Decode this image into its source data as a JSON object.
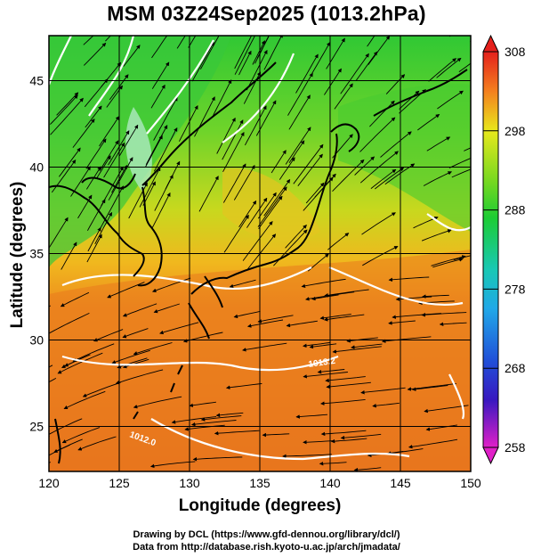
{
  "title": "MSM 03Z24Sep2025 (1013.2hPa)",
  "x_axis_label": "Longitude (degrees)",
  "y_axis_label": "Latitude  (degrees)",
  "footer_line1": "Drawing by DCL (https://www.gfd-dennou.org/library/dcl/)",
  "footer_line2": "Data from http://database.rish.kyoto-u.ac.jp/arch/jmadata/",
  "map": {
    "lon_range": [
      120,
      150
    ],
    "lat_range": [
      22.4,
      47.6
    ],
    "lon_ticks": [
      "120",
      "125",
      "130",
      "135",
      "140",
      "145",
      "150"
    ],
    "lat_ticks": [
      "25",
      "30",
      "35",
      "40",
      "45"
    ],
    "contour_labels": [
      "1013.2",
      "1012.0"
    ]
  },
  "colorbar": {
    "labels": [
      "308",
      "298",
      "288",
      "278",
      "268",
      "258"
    ],
    "range": [
      258,
      308
    ]
  },
  "colors": {
    "warm": "#e8761e",
    "mid": "#d8d81a",
    "cool": "#3ccc2c",
    "contour": "#ffffff",
    "streamline": "#000000"
  }
}
